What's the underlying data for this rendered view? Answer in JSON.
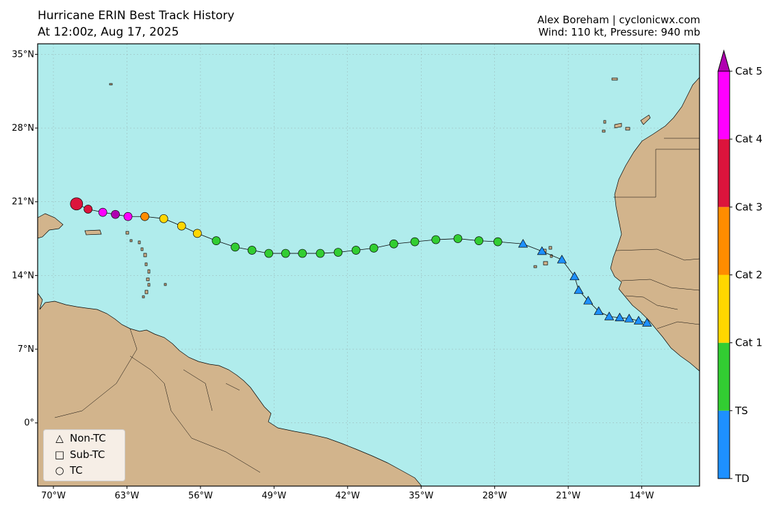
{
  "header": {
    "title_line1": "Hurricane ERIN Best Track History",
    "title_line2": "At 12:00z, Aug 17, 2025",
    "credit_line1": "Alex Boreham | cyclonicwx.com",
    "credit_line2": "Wind: 110 kt, Pressure: 940 mb"
  },
  "map": {
    "lon_range": [
      -71.5,
      -8.5
    ],
    "lat_range": [
      -6,
      36
    ],
    "ocean_color": "#b0ecec",
    "land_color": "#d2b48c",
    "grid": true,
    "lon_ticks": [
      {
        "value": -70,
        "label": "70°W"
      },
      {
        "value": -63,
        "label": "63°W"
      },
      {
        "value": -56,
        "label": "56°W"
      },
      {
        "value": -49,
        "label": "49°W"
      },
      {
        "value": -42,
        "label": "42°W"
      },
      {
        "value": -35,
        "label": "35°W"
      },
      {
        "value": -28,
        "label": "28°W"
      },
      {
        "value": -21,
        "label": "21°W"
      },
      {
        "value": -14,
        "label": "14°W"
      }
    ],
    "lat_ticks": [
      {
        "value": 35,
        "label": "35°N"
      },
      {
        "value": 28,
        "label": "28°N"
      },
      {
        "value": 21,
        "label": "21°N"
      },
      {
        "value": 14,
        "label": "14°N"
      },
      {
        "value": 7,
        "label": "7°N"
      },
      {
        "value": 0,
        "label": "0°"
      }
    ]
  },
  "colorbar": {
    "categories": [
      {
        "label": "TD",
        "color": "#1e90ff"
      },
      {
        "label": "TS",
        "color": "#32cd32"
      },
      {
        "label": "Cat 1",
        "color": "#ffd700"
      },
      {
        "label": "Cat 2",
        "color": "#ff8c00"
      },
      {
        "label": "Cat 3",
        "color": "#dc143c"
      },
      {
        "label": "Cat 4",
        "color": "#ff00ff"
      },
      {
        "label": "Cat 5",
        "color": "#b000b0"
      }
    ],
    "tick_labels": [
      "TD",
      "TS",
      "Cat 1",
      "Cat 2",
      "Cat 3",
      "Cat 4",
      "Cat 5"
    ]
  },
  "legend": {
    "items": [
      {
        "symbol": "△",
        "label": "Non-TC"
      },
      {
        "symbol": "□",
        "label": "Sub-TC"
      },
      {
        "symbol": "○",
        "label": "TC"
      }
    ]
  },
  "track": [
    {
      "lon": -13.5,
      "lat": 9.5,
      "type": "non-tc",
      "category": "TD"
    },
    {
      "lon": -14.3,
      "lat": 9.7,
      "type": "non-tc",
      "category": "TD"
    },
    {
      "lon": -15.2,
      "lat": 9.9,
      "type": "non-tc",
      "category": "TD"
    },
    {
      "lon": -16.1,
      "lat": 10.0,
      "type": "non-tc",
      "category": "TD"
    },
    {
      "lon": -17.1,
      "lat": 10.1,
      "type": "non-tc",
      "category": "TD"
    },
    {
      "lon": -18.1,
      "lat": 10.6,
      "type": "non-tc",
      "category": "TD"
    },
    {
      "lon": -19.1,
      "lat": 11.6,
      "type": "non-tc",
      "category": "TD"
    },
    {
      "lon": -20.0,
      "lat": 12.6,
      "type": "non-tc",
      "category": "TD"
    },
    {
      "lon": -20.4,
      "lat": 13.9,
      "type": "non-tc",
      "category": "TD"
    },
    {
      "lon": -21.6,
      "lat": 15.5,
      "type": "non-tc",
      "category": "TD"
    },
    {
      "lon": -23.5,
      "lat": 16.3,
      "type": "non-tc",
      "category": "TD"
    },
    {
      "lon": -25.3,
      "lat": 17.0,
      "type": "non-tc",
      "category": "TD"
    },
    {
      "lon": -27.7,
      "lat": 17.2,
      "type": "tc",
      "category": "TS"
    },
    {
      "lon": -29.5,
      "lat": 17.3,
      "type": "tc",
      "category": "TS"
    },
    {
      "lon": -31.5,
      "lat": 17.5,
      "type": "tc",
      "category": "TS"
    },
    {
      "lon": -33.6,
      "lat": 17.4,
      "type": "tc",
      "category": "TS"
    },
    {
      "lon": -35.6,
      "lat": 17.2,
      "type": "tc",
      "category": "TS"
    },
    {
      "lon": -37.6,
      "lat": 17.0,
      "type": "tc",
      "category": "TS"
    },
    {
      "lon": -39.5,
      "lat": 16.6,
      "type": "tc",
      "category": "TS"
    },
    {
      "lon": -41.2,
      "lat": 16.4,
      "type": "tc",
      "category": "TS"
    },
    {
      "lon": -42.9,
      "lat": 16.2,
      "type": "tc",
      "category": "TS"
    },
    {
      "lon": -44.6,
      "lat": 16.1,
      "type": "tc",
      "category": "TS"
    },
    {
      "lon": -46.3,
      "lat": 16.1,
      "type": "tc",
      "category": "TS"
    },
    {
      "lon": -47.9,
      "lat": 16.1,
      "type": "tc",
      "category": "TS"
    },
    {
      "lon": -49.5,
      "lat": 16.1,
      "type": "tc",
      "category": "TS"
    },
    {
      "lon": -51.1,
      "lat": 16.4,
      "type": "tc",
      "category": "TS"
    },
    {
      "lon": -52.7,
      "lat": 16.7,
      "type": "tc",
      "category": "TS"
    },
    {
      "lon": -54.5,
      "lat": 17.3,
      "type": "tc",
      "category": "TS"
    },
    {
      "lon": -56.3,
      "lat": 18.0,
      "type": "tc",
      "category": "Cat 1"
    },
    {
      "lon": -57.8,
      "lat": 18.7,
      "type": "tc",
      "category": "Cat 1"
    },
    {
      "lon": -59.5,
      "lat": 19.4,
      "type": "tc",
      "category": "Cat 1"
    },
    {
      "lon": -61.3,
      "lat": 19.6,
      "type": "tc",
      "category": "Cat 2"
    },
    {
      "lon": -62.9,
      "lat": 19.6,
      "type": "tc",
      "category": "Cat 4"
    },
    {
      "lon": -64.1,
      "lat": 19.8,
      "type": "tc",
      "category": "Cat 5"
    },
    {
      "lon": -65.3,
      "lat": 20.0,
      "type": "tc",
      "category": "Cat 4"
    },
    {
      "lon": -66.7,
      "lat": 20.3,
      "type": "tc",
      "category": "Cat 3"
    },
    {
      "lon": -67.8,
      "lat": 20.8,
      "type": "tc",
      "category": "Cat 3",
      "current": true
    }
  ]
}
